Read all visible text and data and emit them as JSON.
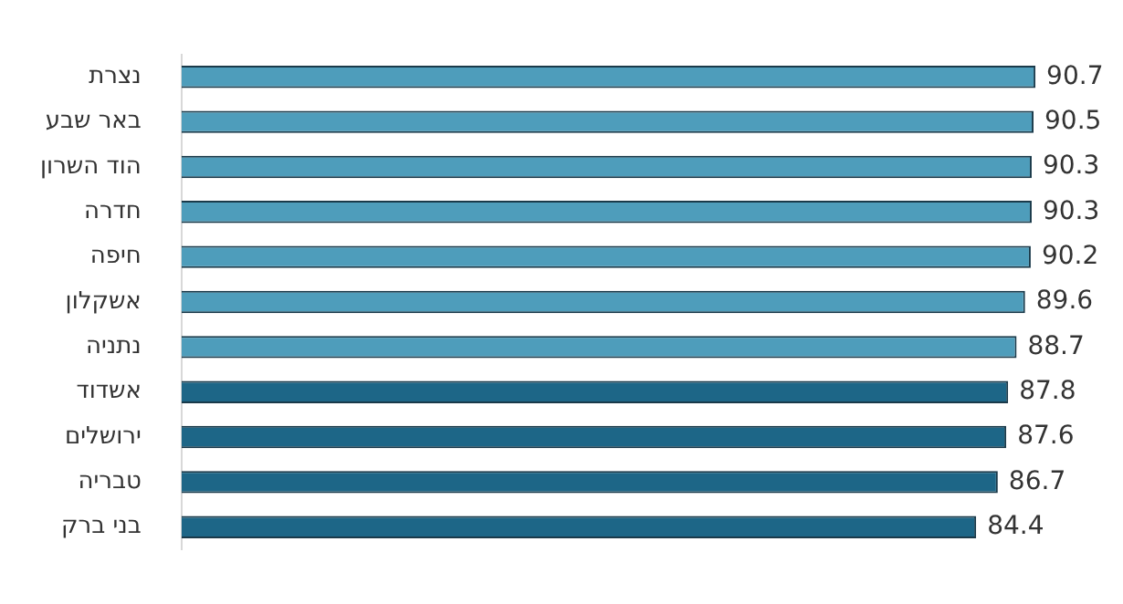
{
  "chart_data": {
    "type": "bar",
    "orientation": "horizontal",
    "categories": [
      "נצרת",
      "באר שבע",
      "הוד השרון",
      "חדרה",
      "חיפה",
      "אשקלון",
      "נתניה",
      "אשדוד",
      "ירושלים",
      "טבריה",
      "בני ברק"
    ],
    "values": [
      90.7,
      90.5,
      90.3,
      90.3,
      90.2,
      89.6,
      88.7,
      87.8,
      87.6,
      86.7,
      84.4
    ],
    "colors": [
      "#4e9dbb",
      "#4e9dbb",
      "#4e9dbb",
      "#4e9dbb",
      "#4e9dbb",
      "#4e9dbb",
      "#4e9dbb",
      "#1d6687",
      "#1d6687",
      "#1d6687",
      "#1d6687"
    ],
    "tick_labels": "y",
    "data_labels": true,
    "grid": false,
    "legend": false
  }
}
